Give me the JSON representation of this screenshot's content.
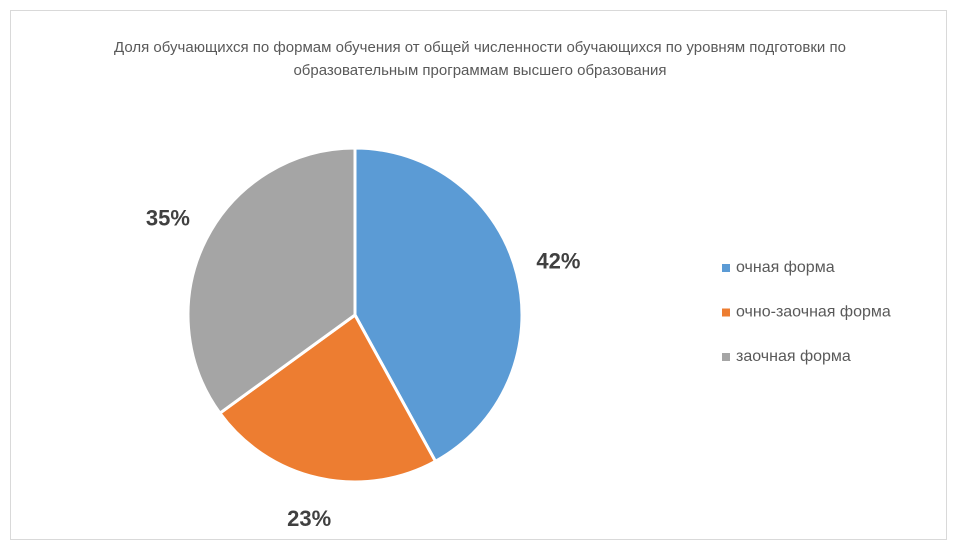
{
  "chart_data": {
    "type": "pie",
    "title": "Доля обучающихся по формам обучения от общей численности обучающихся по уровням подготовки по образовательным программам высшего образования",
    "categories": [
      "очная форма",
      "очно-заочная форма",
      "заочная форма"
    ],
    "values": [
      42,
      23,
      35
    ],
    "value_labels": [
      "42%",
      "23%",
      "35%"
    ],
    "colors": [
      "#5b9bd5",
      "#ed7d31",
      "#a5a5a5"
    ],
    "legend": "right"
  }
}
